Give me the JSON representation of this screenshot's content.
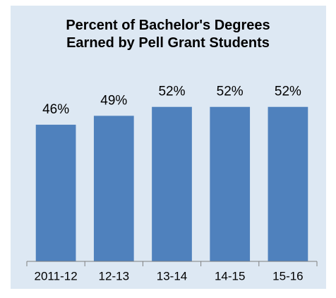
{
  "chart_data": {
    "type": "bar",
    "title": "Percent of Bachelor's Degrees Earned by Pell Grant Students",
    "categories": [
      "2011-12",
      "12-13",
      "13-14",
      "14-15",
      "15-16"
    ],
    "values": [
      46,
      49,
      52,
      52,
      52
    ],
    "value_labels": [
      "46%",
      "49%",
      "52%",
      "52%",
      "52%"
    ],
    "color": "#4f81bd",
    "ylim": [
      0,
      60
    ]
  }
}
